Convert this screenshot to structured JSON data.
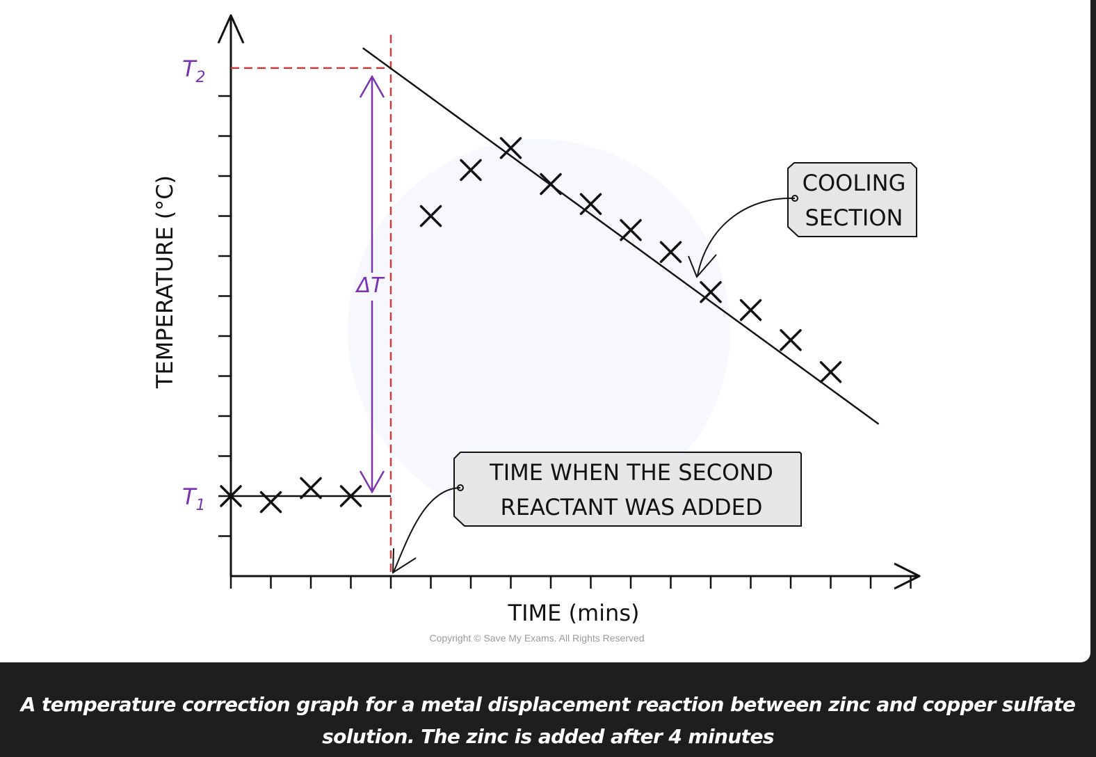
{
  "chart_data": {
    "type": "scatter",
    "xlabel": "TIME  (mins)",
    "ylabel": "TEMPERATURE  (°C)",
    "xlim": [
      0,
      17
    ],
    "ylim": [
      0,
      14
    ],
    "y_labels": {
      "T1": {
        "main": "T",
        "sub": "1",
        "value": 2
      },
      "T2": {
        "main": "T",
        "sub": "2",
        "value": 12.7
      }
    },
    "delta_label": "ΔT",
    "series": [
      {
        "values": [
          [
            0,
            2.0
          ],
          [
            1,
            1.85
          ],
          [
            2,
            2.2
          ],
          [
            3,
            2.0
          ],
          [
            5,
            9.0
          ],
          [
            6,
            10.15
          ],
          [
            7,
            10.7
          ],
          [
            8,
            9.8
          ],
          [
            9,
            9.3
          ],
          [
            10,
            8.65
          ],
          [
            11,
            8.1
          ],
          [
            12,
            7.1
          ],
          [
            13,
            6.65
          ],
          [
            14,
            5.9
          ],
          [
            15,
            5.1
          ]
        ]
      }
    ],
    "baseline_line": {
      "x": [
        0,
        4
      ],
      "y": 2.0
    },
    "cooling_line": {
      "x": [
        3.3,
        16.2
      ],
      "y": [
        13.2,
        3.8
      ]
    },
    "addition_time": 4,
    "annotations": [
      {
        "lines": [
          "COOLING",
          "SECTION"
        ]
      },
      {
        "lines": [
          "TIME  WHEN  THE  SECOND",
          "REACTANT  WAS  ADDED"
        ]
      }
    ],
    "grid": false
  },
  "copyright": "Copyright © Save My Exams. All Rights Reserved",
  "caption": "A temperature correction graph for a metal displacement reaction between zinc and copper sulfate solution. The zinc is added after 4 minutes",
  "colors": {
    "axis": "#111111",
    "marker": "#111111",
    "dashed": "#d63a3a",
    "accent": "#7a32b0",
    "annotation_fill": "#e6e6e6",
    "caption_bg": "#1e1e1e"
  }
}
